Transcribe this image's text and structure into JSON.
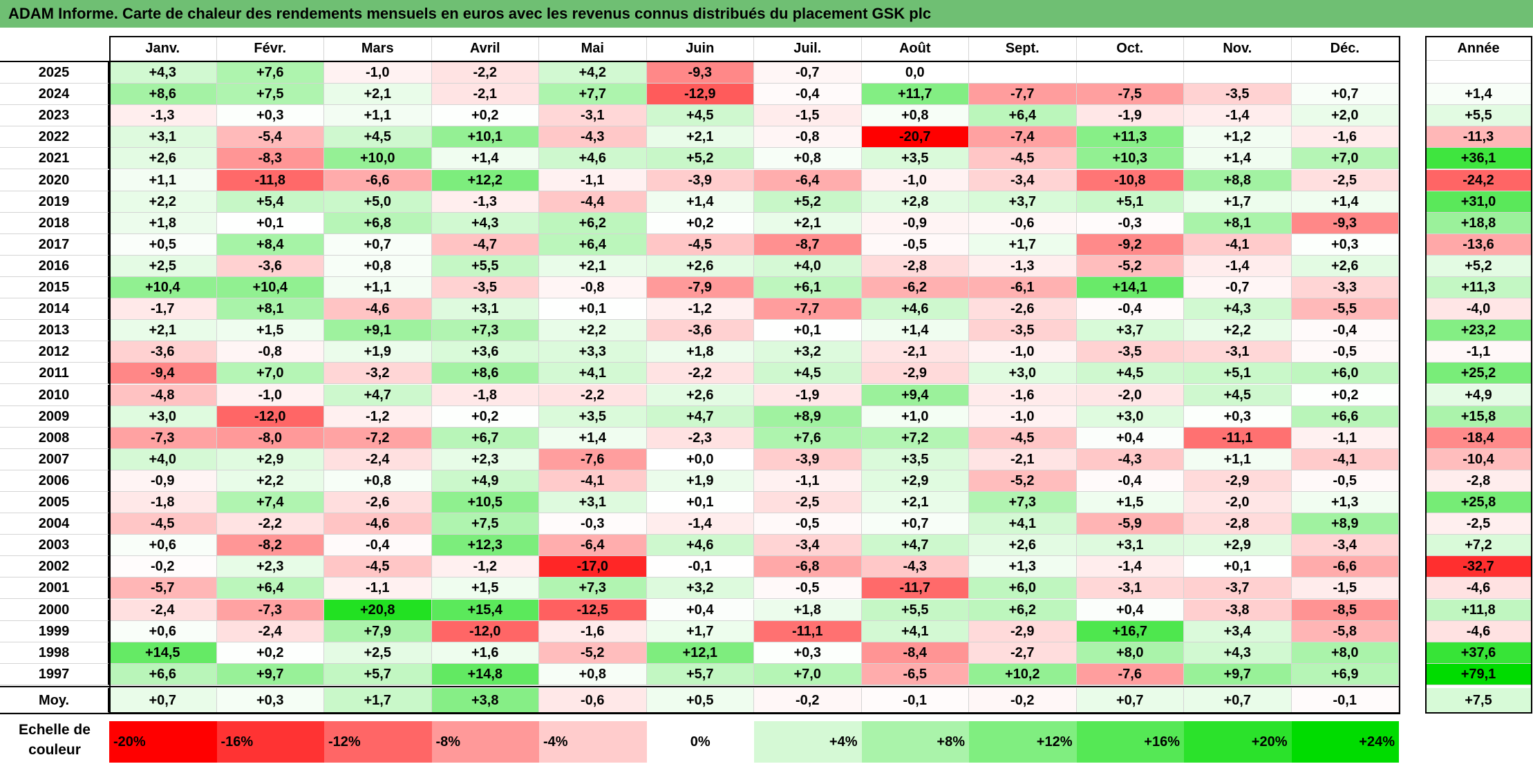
{
  "title": "ADAM Informe. Carte de chaleur des rendements mensuels en euros avec les revenus connus distribués du placement GSK plc",
  "months": [
    "Janv.",
    "Févr.",
    "Mars",
    "Avril",
    "Mai",
    "Juin",
    "Juil.",
    "Août",
    "Sept.",
    "Oct.",
    "Nov.",
    "Déc."
  ],
  "year_header": "Année",
  "rows": [
    {
      "year": "2025",
      "values": [
        "+4,3",
        "+7,6",
        "-1,0",
        "-2,2",
        "+4,2",
        "-9,3",
        "-0,7",
        "0,0",
        "",
        "",
        "",
        ""
      ],
      "annual": ""
    },
    {
      "year": "2024",
      "values": [
        "+8,6",
        "+7,5",
        "+2,1",
        "-2,1",
        "+7,7",
        "-12,9",
        "-0,4",
        "+11,7",
        "-7,7",
        "-7,5",
        "-3,5",
        "+0,7"
      ],
      "annual": "+1,4"
    },
    {
      "year": "2023",
      "values": [
        "-1,3",
        "+0,3",
        "+1,1",
        "+0,2",
        "-3,1",
        "+4,5",
        "-1,5",
        "+0,8",
        "+6,4",
        "-1,9",
        "-1,4",
        "+2,0"
      ],
      "annual": "+5,5"
    },
    {
      "year": "2022",
      "values": [
        "+3,1",
        "-5,4",
        "+4,5",
        "+10,1",
        "-4,3",
        "+2,1",
        "-0,8",
        "-20,7",
        "-7,4",
        "+11,3",
        "+1,2",
        "-1,6"
      ],
      "annual": "-11,3"
    },
    {
      "year": "2021",
      "values": [
        "+2,6",
        "-8,3",
        "+10,0",
        "+1,4",
        "+4,6",
        "+5,2",
        "+0,8",
        "+3,5",
        "-4,5",
        "+10,3",
        "+1,4",
        "+7,0"
      ],
      "annual": "+36,1"
    },
    {
      "year": "2020",
      "values": [
        "+1,1",
        "-11,8",
        "-6,6",
        "+12,2",
        "-1,1",
        "-3,9",
        "-6,4",
        "-1,0",
        "-3,4",
        "-10,8",
        "+8,8",
        "-2,5"
      ],
      "annual": "-24,2"
    },
    {
      "year": "2019",
      "values": [
        "+2,2",
        "+5,4",
        "+5,0",
        "-1,3",
        "-4,4",
        "+1,4",
        "+5,2",
        "+2,8",
        "+3,7",
        "+5,1",
        "+1,7",
        "+1,4"
      ],
      "annual": "+31,0"
    },
    {
      "year": "2018",
      "values": [
        "+1,8",
        "+0,1",
        "+6,8",
        "+4,3",
        "+6,2",
        "+0,2",
        "+2,1",
        "-0,9",
        "-0,6",
        "-0,3",
        "+8,1",
        "-9,3"
      ],
      "annual": "+18,8"
    },
    {
      "year": "2017",
      "values": [
        "+0,5",
        "+8,4",
        "+0,7",
        "-4,7",
        "+6,4",
        "-4,5",
        "-8,7",
        "-0,5",
        "+1,7",
        "-9,2",
        "-4,1",
        "+0,3"
      ],
      "annual": "-13,6"
    },
    {
      "year": "2016",
      "values": [
        "+2,5",
        "-3,6",
        "+0,8",
        "+5,5",
        "+2,1",
        "+2,6",
        "+4,0",
        "-2,8",
        "-1,3",
        "-5,2",
        "-1,4",
        "+2,6"
      ],
      "annual": "+5,2"
    },
    {
      "year": "2015",
      "values": [
        "+10,4",
        "+10,4",
        "+1,1",
        "-3,5",
        "-0,8",
        "-7,9",
        "+6,1",
        "-6,2",
        "-6,1",
        "+14,1",
        "-0,7",
        "-3,3"
      ],
      "annual": "+11,3"
    },
    {
      "year": "2014",
      "values": [
        "-1,7",
        "+8,1",
        "-4,6",
        "+3,1",
        "+0,1",
        "-1,2",
        "-7,7",
        "+4,6",
        "-2,6",
        "-0,4",
        "+4,3",
        "-5,5"
      ],
      "annual": "-4,0"
    },
    {
      "year": "2013",
      "values": [
        "+2,1",
        "+1,5",
        "+9,1",
        "+7,3",
        "+2,2",
        "-3,6",
        "+0,1",
        "+1,4",
        "-3,5",
        "+3,7",
        "+2,2",
        "-0,4"
      ],
      "annual": "+23,2"
    },
    {
      "year": "2012",
      "values": [
        "-3,6",
        "-0,8",
        "+1,9",
        "+3,6",
        "+3,3",
        "+1,8",
        "+3,2",
        "-2,1",
        "-1,0",
        "-3,5",
        "-3,1",
        "-0,5"
      ],
      "annual": "-1,1"
    },
    {
      "year": "2011",
      "values": [
        "-9,4",
        "+7,0",
        "-3,2",
        "+8,6",
        "+4,1",
        "-2,2",
        "+4,5",
        "-2,9",
        "+3,0",
        "+4,5",
        "+5,1",
        "+6,0"
      ],
      "annual": "+25,2"
    },
    {
      "year": "2010",
      "values": [
        "-4,8",
        "-1,0",
        "+4,7",
        "-1,8",
        "-2,2",
        "+2,6",
        "-1,9",
        "+9,4",
        "-1,6",
        "-2,0",
        "+4,5",
        "+0,2"
      ],
      "annual": "+4,9"
    },
    {
      "year": "2009",
      "values": [
        "+3,0",
        "-12,0",
        "-1,2",
        "+0,2",
        "+3,5",
        "+4,7",
        "+8,9",
        "+1,0",
        "-1,0",
        "+3,0",
        "+0,3",
        "+6,6"
      ],
      "annual": "+15,8"
    },
    {
      "year": "2008",
      "values": [
        "-7,3",
        "-8,0",
        "-7,2",
        "+6,7",
        "+1,4",
        "-2,3",
        "+7,6",
        "+7,2",
        "-4,5",
        "+0,4",
        "-11,1",
        "-1,1"
      ],
      "annual": "-18,4"
    },
    {
      "year": "2007",
      "values": [
        "+4,0",
        "+2,9",
        "-2,4",
        "+2,3",
        "-7,6",
        "+0,0",
        "-3,9",
        "+3,5",
        "-2,1",
        "-4,3",
        "+1,1",
        "-4,1"
      ],
      "annual": "-10,4"
    },
    {
      "year": "2006",
      "values": [
        "-0,9",
        "+2,2",
        "+0,8",
        "+4,9",
        "-4,1",
        "+1,9",
        "-1,1",
        "+2,9",
        "-5,2",
        "-0,4",
        "-2,9",
        "-0,5"
      ],
      "annual": "-2,8"
    },
    {
      "year": "2005",
      "values": [
        "-1,8",
        "+7,4",
        "-2,6",
        "+10,5",
        "+3,1",
        "+0,1",
        "-2,5",
        "+2,1",
        "+7,3",
        "+1,5",
        "-2,0",
        "+1,3"
      ],
      "annual": "+25,8"
    },
    {
      "year": "2004",
      "values": [
        "-4,5",
        "-2,2",
        "-4,6",
        "+7,5",
        "-0,3",
        "-1,4",
        "-0,5",
        "+0,7",
        "+4,1",
        "-5,9",
        "-2,8",
        "+8,9"
      ],
      "annual": "-2,5"
    },
    {
      "year": "2003",
      "values": [
        "+0,6",
        "-8,2",
        "-0,4",
        "+12,3",
        "-6,4",
        "+4,6",
        "-3,4",
        "+4,7",
        "+2,6",
        "+3,1",
        "+2,9",
        "-3,4"
      ],
      "annual": "+7,2"
    },
    {
      "year": "2002",
      "values": [
        "-0,2",
        "+2,3",
        "-4,5",
        "-1,2",
        "-17,0",
        "-0,1",
        "-6,8",
        "-4,3",
        "+1,3",
        "-1,4",
        "+0,1",
        "-6,6"
      ],
      "annual": "-32,7"
    },
    {
      "year": "2001",
      "values": [
        "-5,7",
        "+6,4",
        "-1,1",
        "+1,5",
        "+7,3",
        "+3,2",
        "-0,5",
        "-11,7",
        "+6,0",
        "-3,1",
        "-3,7",
        "-1,5"
      ],
      "annual": "-4,6"
    },
    {
      "year": "2000",
      "values": [
        "-2,4",
        "-7,3",
        "+20,8",
        "+15,4",
        "-12,5",
        "+0,4",
        "+1,8",
        "+5,5",
        "+6,2",
        "+0,4",
        "-3,8",
        "-8,5"
      ],
      "annual": "+11,8"
    },
    {
      "year": "1999",
      "values": [
        "+0,6",
        "-2,4",
        "+7,9",
        "-12,0",
        "-1,6",
        "+1,7",
        "-11,1",
        "+4,1",
        "-2,9",
        "+16,7",
        "+3,4",
        "-5,8"
      ],
      "annual": "-4,6"
    },
    {
      "year": "1998",
      "values": [
        "+14,5",
        "+0,2",
        "+2,5",
        "+1,6",
        "-5,2",
        "+12,1",
        "+0,3",
        "-8,4",
        "-2,7",
        "+8,0",
        "+4,3",
        "+8,0"
      ],
      "annual": "+37,6"
    },
    {
      "year": "1997",
      "values": [
        "+6,6",
        "+9,7",
        "+5,7",
        "+14,8",
        "+0,8",
        "+5,7",
        "+7,0",
        "-6,5",
        "+10,2",
        "-7,6",
        "+9,7",
        "+6,9"
      ],
      "annual": "+79,1"
    }
  ],
  "average": {
    "label": "Moy.",
    "values": [
      "+0,7",
      "+0,3",
      "+1,7",
      "+3,8",
      "-0,6",
      "+0,5",
      "-0,2",
      "-0,1",
      "-0,2",
      "+0,7",
      "+0,7",
      "-0,1"
    ],
    "annual": "+7,5"
  },
  "legend": {
    "label_line1": "Echelle de",
    "label_line2": "couleur",
    "steps": [
      {
        "label": "-20%",
        "value": -20
      },
      {
        "label": "-16%",
        "value": -16
      },
      {
        "label": "-12%",
        "value": -12
      },
      {
        "label": "-8%",
        "value": -8
      },
      {
        "label": "-4%",
        "value": -4
      },
      {
        "label": "0%",
        "value": 0
      },
      {
        "label": "+4%",
        "value": 4
      },
      {
        "label": "+8%",
        "value": 8
      },
      {
        "label": "+12%",
        "value": 12
      },
      {
        "label": "+16%",
        "value": 16
      },
      {
        "label": "+20%",
        "value": 20
      },
      {
        "label": "+24%",
        "value": 24
      }
    ]
  },
  "colors": {
    "title_bar": "#6fbf73",
    "negative_max": "#ff0000",
    "positive_max": "#00dd00",
    "neutral": "#ffffff"
  }
}
